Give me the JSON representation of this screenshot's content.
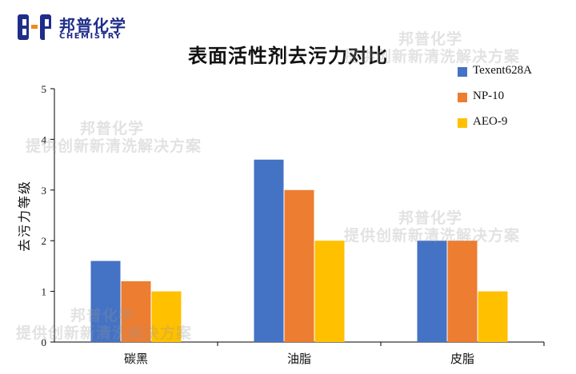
{
  "logo": {
    "mark": "B-P",
    "name_cn": "邦普化学",
    "name_en": "CHEMISTRY"
  },
  "watermark": {
    "line1": "邦普化学",
    "line2": "提供创新新清洗解决方案"
  },
  "colors": {
    "series": [
      "#4472c4",
      "#ed7d31",
      "#ffc000"
    ],
    "logo": "#1f2d8a",
    "axis": "#000000"
  },
  "chart_data": {
    "type": "bar",
    "title": "表面活性剂去污力对比",
    "ylabel": "去污力等级",
    "xlabel": "",
    "categories": [
      "碳黑",
      "油脂",
      "皮脂"
    ],
    "ylim": [
      0,
      5
    ],
    "yticks": [
      "0",
      "1",
      "2",
      "3",
      "4",
      "5"
    ],
    "grid": false,
    "legend_position": "top-right",
    "series": [
      {
        "name": "Texent628A",
        "values": [
          1.6,
          3.6,
          2.0
        ]
      },
      {
        "name": "NP-10",
        "values": [
          1.2,
          3.0,
          2.0
        ]
      },
      {
        "name": "AEO-9",
        "values": [
          1.0,
          2.0,
          1.0
        ]
      }
    ]
  }
}
